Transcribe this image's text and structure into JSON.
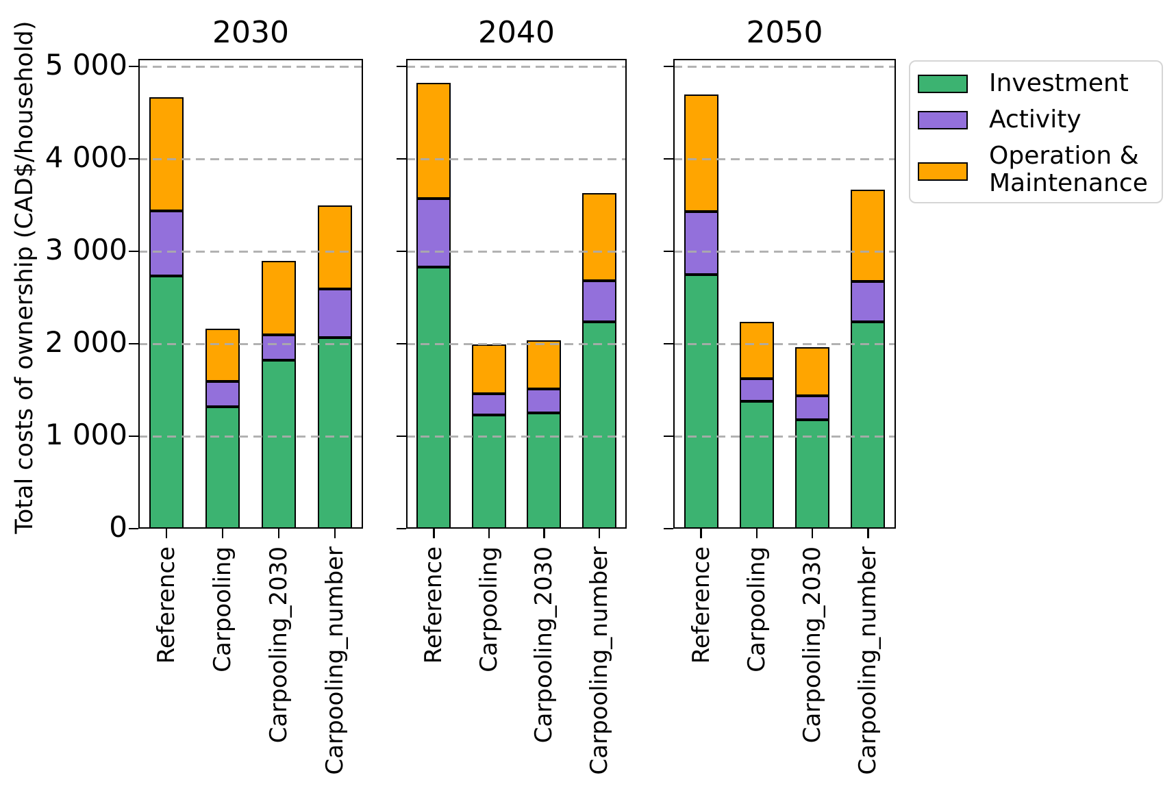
{
  "figure": {
    "background": "#ffffff",
    "y_axis": {
      "label": "Total costs of ownership (CAD$/household)",
      "tick_labels": [
        "5 000",
        "4 000",
        "3 000",
        "2 000",
        "1 000",
        "0"
      ],
      "tick_values": [
        5000,
        4000,
        3000,
        2000,
        1000,
        0
      ],
      "range": [
        0,
        5080
      ],
      "gridlines": [
        1000,
        2000,
        3000,
        4000,
        5000
      ],
      "gridline_style": "dashed",
      "gridline_color": "#ababab"
    },
    "legend": {
      "position": "upper-right-outside",
      "items": [
        {
          "label": "Investment",
          "color": "#3cb371"
        },
        {
          "label": "Activity",
          "color": "#9370db"
        },
        {
          "label": "Operation &\n Maintenance",
          "color": "#ffa500"
        }
      ]
    }
  },
  "chart_data": [
    {
      "type": "bar",
      "stacked": true,
      "title": "2030",
      "categories": [
        "Reference",
        "Carpooling",
        "Carpooling_2030",
        "Carpooling_number"
      ],
      "series": [
        {
          "name": "Investment",
          "color": "#3cb371",
          "values": [
            2730,
            1315,
            1825,
            2070
          ]
        },
        {
          "name": "Activity",
          "color": "#9370db",
          "values": [
            710,
            280,
            270,
            520
          ]
        },
        {
          "name": "Operation & Maintenance",
          "color": "#ffa500",
          "values": [
            1230,
            570,
            805,
            910
          ]
        }
      ],
      "totals": [
        4670,
        2165,
        2900,
        3500
      ],
      "ylim": [
        0,
        5080
      ],
      "grid": true,
      "xlabel": "",
      "ylabel": "Total costs of ownership (CAD$/household)"
    },
    {
      "type": "bar",
      "stacked": true,
      "title": "2040",
      "categories": [
        "Reference",
        "Carpooling",
        "Carpooling_2030",
        "Carpooling_number"
      ],
      "series": [
        {
          "name": "Investment",
          "color": "#3cb371",
          "values": [
            2830,
            1230,
            1255,
            2240
          ]
        },
        {
          "name": "Activity",
          "color": "#9370db",
          "values": [
            740,
            230,
            255,
            440
          ]
        },
        {
          "name": "Operation & Maintenance",
          "color": "#ffa500",
          "values": [
            1255,
            530,
            525,
            950
          ]
        }
      ],
      "totals": [
        4825,
        1990,
        2035,
        3630
      ],
      "ylim": [
        0,
        5080
      ],
      "grid": true,
      "xlabel": "",
      "ylabel": ""
    },
    {
      "type": "bar",
      "stacked": true,
      "title": "2050",
      "categories": [
        "Reference",
        "Carpooling",
        "Carpooling_2030",
        "Carpooling_number"
      ],
      "series": [
        {
          "name": "Investment",
          "color": "#3cb371",
          "values": [
            2750,
            1380,
            1180,
            2240
          ]
        },
        {
          "name": "Activity",
          "color": "#9370db",
          "values": [
            680,
            240,
            255,
            435
          ]
        },
        {
          "name": "Operation & Maintenance",
          "color": "#ffa500",
          "values": [
            1270,
            620,
            530,
            995
          ]
        }
      ],
      "totals": [
        4700,
        2240,
        1965,
        3670
      ],
      "ylim": [
        0,
        5080
      ],
      "grid": true,
      "xlabel": "",
      "ylabel": ""
    }
  ]
}
